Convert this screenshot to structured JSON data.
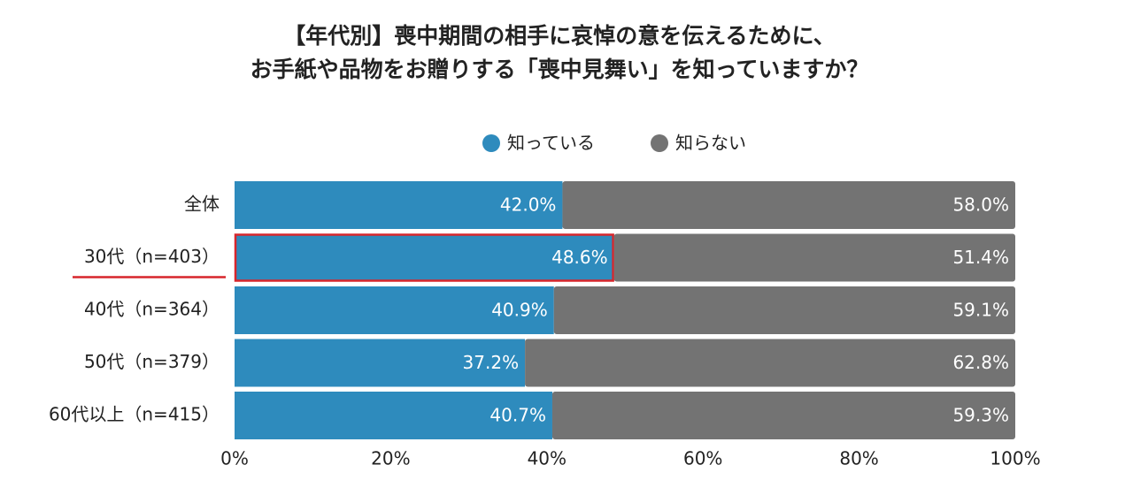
{
  "chart_data": {
    "type": "stacked_bar_horizontal",
    "title": [
      "【年代別】喪中期間の相手に哀悼の意を伝えるために、",
      "お手紙や品物をお贈りする「喪中見舞い」を知っていますか？"
    ],
    "categories": [
      "全体",
      "30代（n=403）",
      "40代（n=364）",
      "50代（n=379）",
      "60代以上（n=415）"
    ],
    "series": [
      {
        "name": "知っている",
        "color": "#2e8bbd",
        "values": [
          42.0,
          48.6,
          40.9,
          37.2,
          40.7
        ],
        "value_labels": [
          "42.0%",
          "48.6%",
          "40.9%",
          "37.2%",
          "40.7%"
        ]
      },
      {
        "name": "知らない",
        "color": "#737373",
        "values": [
          58.0,
          51.4,
          59.1,
          62.8,
          59.3
        ],
        "value_labels": [
          "58.0%",
          "51.4%",
          "59.1%",
          "62.8%",
          "59.3%"
        ]
      }
    ],
    "xlim": [
      0,
      100
    ],
    "xticks": [
      {
        "value": 0,
        "label": "0%"
      },
      {
        "value": 20,
        "label": "20%"
      },
      {
        "value": 40,
        "label": "40%"
      },
      {
        "value": 60,
        "label": "60%"
      },
      {
        "value": 80,
        "label": "80%"
      },
      {
        "value": 100,
        "label": "100%"
      }
    ],
    "legend": "top",
    "highlight_index": 1,
    "highlight_color": "#d7262c"
  }
}
